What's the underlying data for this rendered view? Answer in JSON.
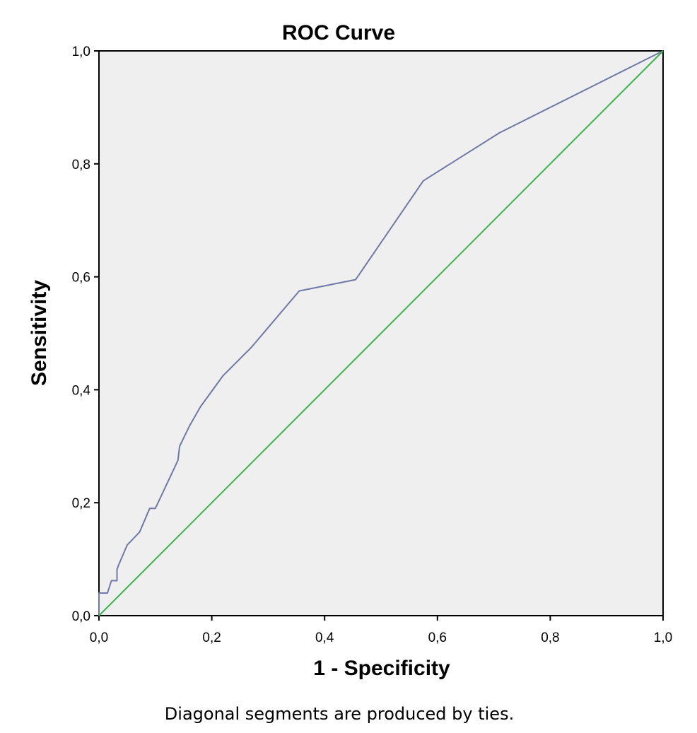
{
  "chart_data": {
    "type": "line",
    "title": "ROC Curve",
    "xlabel": "1 - Specificity",
    "ylabel": "Sensitivity",
    "footnote": "Diagonal segments are produced by ties.",
    "xlim": [
      0,
      1
    ],
    "ylim": [
      0,
      1
    ],
    "xticks": [
      "0,0",
      "0,2",
      "0,4",
      "0,6",
      "0,8",
      "1,0"
    ],
    "yticks": [
      "0,0",
      "0,2",
      "0,4",
      "0,6",
      "0,8",
      "1,0"
    ],
    "grid": false,
    "plot_background": "#efefef",
    "series": [
      {
        "color": "#6f79a8",
        "x": [
          0.0,
          0.0,
          0.015,
          0.022,
          0.032,
          0.032,
          0.035,
          0.05,
          0.072,
          0.09,
          0.1,
          0.14,
          0.143,
          0.16,
          0.18,
          0.22,
          0.27,
          0.355,
          0.455,
          0.575,
          0.71,
          1.0
        ],
        "y": [
          0.0,
          0.04,
          0.04,
          0.062,
          0.062,
          0.082,
          0.09,
          0.125,
          0.148,
          0.19,
          0.19,
          0.275,
          0.3,
          0.335,
          0.37,
          0.425,
          0.475,
          0.575,
          0.595,
          0.77,
          0.855,
          1.0
        ]
      },
      {
        "color": "#3cb44b",
        "x": [
          0,
          1
        ],
        "y": [
          0,
          1
        ]
      }
    ]
  }
}
